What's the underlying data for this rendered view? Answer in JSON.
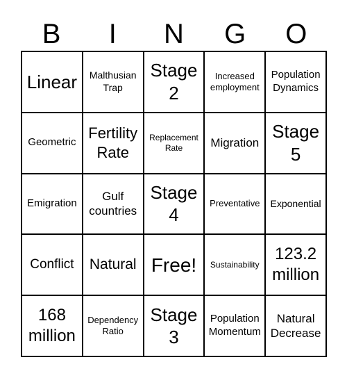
{
  "header": [
    "B",
    "I",
    "N",
    "G",
    "O"
  ],
  "grid": [
    [
      "Linear",
      "Malthusian Trap",
      "Stage 2",
      "Increased employment",
      "Population Dynamics"
    ],
    [
      "Geometric",
      "Fertility Rate",
      "Replacement Rate",
      "Migration",
      "Stage 5"
    ],
    [
      "Emigration",
      "Gulf countries",
      "Stage 4",
      "Preventative",
      "Exponential"
    ],
    [
      "Conflict",
      "Natural",
      "Free!",
      "Sustainability",
      "123.2 million"
    ],
    [
      "168 million",
      "Dependency Ratio",
      "Stage 3",
      "Population Momentum",
      "Natural Decrease"
    ]
  ]
}
